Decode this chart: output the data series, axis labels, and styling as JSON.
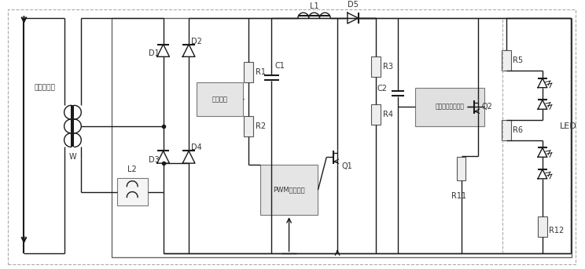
{
  "bg_color": "#ffffff",
  "fig_width": 7.44,
  "fig_height": 3.43,
  "label_current_source": "电流源信号",
  "label_w": "W",
  "label_L2": "L2",
  "label_D1": "D1",
  "label_D2": "D2",
  "label_D3": "D3",
  "label_D4": "D4",
  "label_R1": "R1",
  "label_R2": "R2",
  "label_C1": "C1",
  "label_L1": "L1",
  "label_D5": "D5",
  "label_R3": "R3",
  "label_R4": "R4",
  "label_C2": "C2",
  "label_Q1": "Q1",
  "label_Q2": "Q2",
  "label_R5": "R5",
  "label_R6": "R6",
  "label_R11": "R11",
  "label_R12": "R12",
  "label_LED": "LED",
  "label_PWM": "PWM控制组件",
  "label_protect": "保护电路",
  "label_elec_load": "电子负载电阻组件",
  "line_color": "#1a1a1a",
  "text_color": "#333333"
}
